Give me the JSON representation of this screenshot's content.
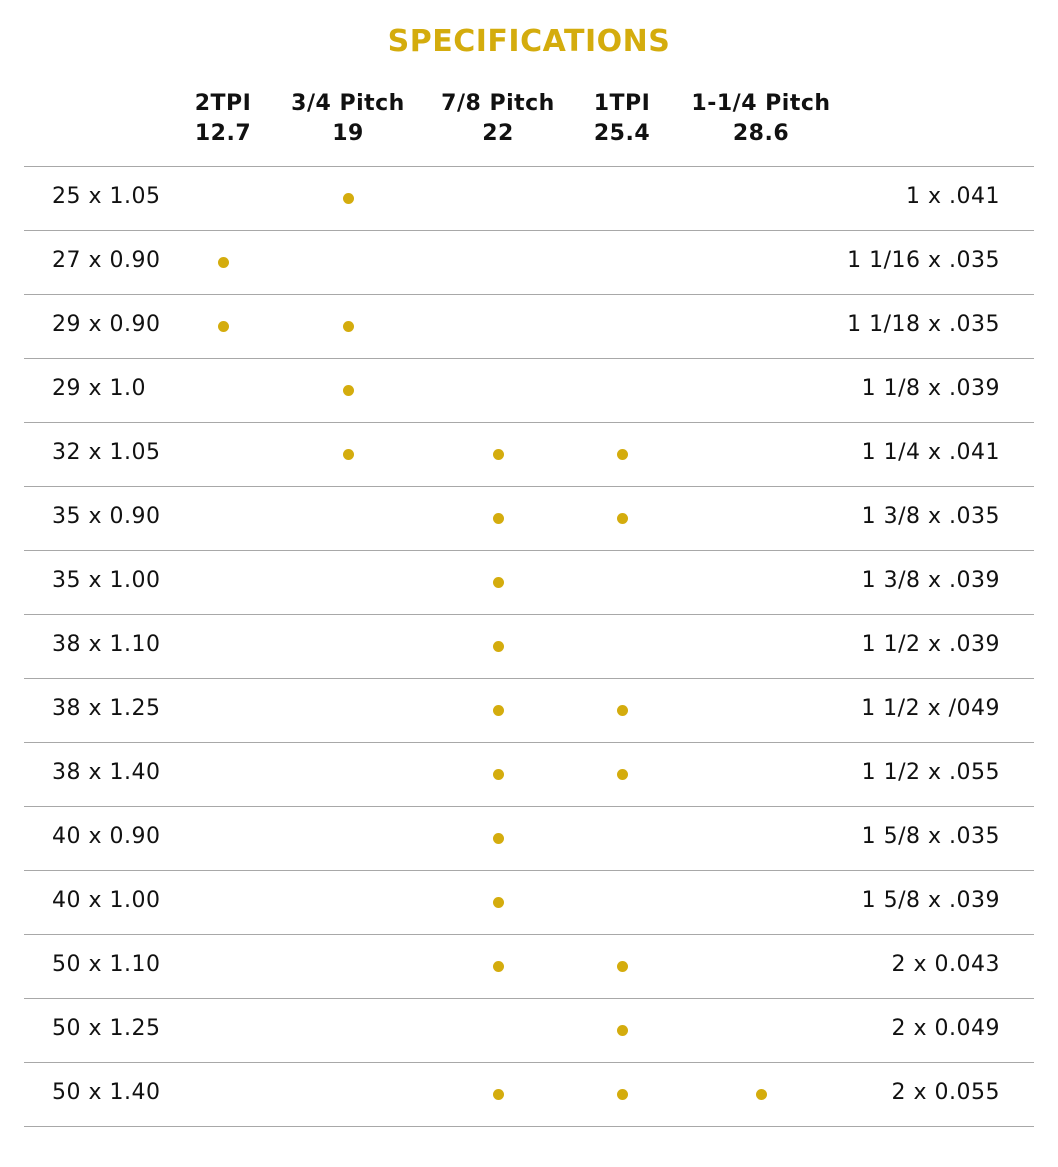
{
  "header": {
    "title": "SPECIFICATIONS"
  },
  "table": {
    "columns": [
      {
        "line1": "2TPI",
        "line2": "12.7"
      },
      {
        "line1": "3/4 Pitch",
        "line2": "19"
      },
      {
        "line1": "7/8 Pitch",
        "line2": "22"
      },
      {
        "line1": "1TPI",
        "line2": "25.4"
      },
      {
        "line1": "1-1/4 Pitch",
        "line2": "28.6"
      }
    ],
    "rows": [
      {
        "metric": "25 x 1.05",
        "available": [
          false,
          true,
          false,
          false,
          false
        ],
        "imperial": "1 x .041"
      },
      {
        "metric": "27 x 0.90",
        "available": [
          true,
          false,
          false,
          false,
          false
        ],
        "imperial": "1 1/16 x .035"
      },
      {
        "metric": "29 x 0.90",
        "available": [
          true,
          true,
          false,
          false,
          false
        ],
        "imperial": "1 1/18 x .035"
      },
      {
        "metric": "29 x 1.0",
        "available": [
          false,
          true,
          false,
          false,
          false
        ],
        "imperial": "1 1/8 x .039"
      },
      {
        "metric": "32 x 1.05",
        "available": [
          false,
          true,
          true,
          true,
          false
        ],
        "imperial": "1 1/4 x .041"
      },
      {
        "metric": "35 x 0.90",
        "available": [
          false,
          false,
          true,
          true,
          false
        ],
        "imperial": "1 3/8 x .035"
      },
      {
        "metric": "35 x 1.00",
        "available": [
          false,
          false,
          true,
          false,
          false
        ],
        "imperial": "1 3/8 x .039"
      },
      {
        "metric": "38 x 1.10",
        "available": [
          false,
          false,
          true,
          false,
          false
        ],
        "imperial": "1 1/2 x .039"
      },
      {
        "metric": "38 x 1.25",
        "available": [
          false,
          false,
          true,
          true,
          false
        ],
        "imperial": "1 1/2 x /049"
      },
      {
        "metric": "38 x 1.40",
        "available": [
          false,
          false,
          true,
          true,
          false
        ],
        "imperial": "1 1/2 x .055"
      },
      {
        "metric": "40 x 0.90",
        "available": [
          false,
          false,
          true,
          false,
          false
        ],
        "imperial": "1 5/8 x .035"
      },
      {
        "metric": "40 x 1.00",
        "available": [
          false,
          false,
          true,
          false,
          false
        ],
        "imperial": "1 5/8 x .039"
      },
      {
        "metric": "50 x 1.10",
        "available": [
          false,
          false,
          true,
          true,
          false
        ],
        "imperial": "2 x 0.043"
      },
      {
        "metric": "50 x 1.25",
        "available": [
          false,
          false,
          false,
          true,
          false
        ],
        "imperial": "2 x 0.049"
      },
      {
        "metric": "50 x 1.40",
        "available": [
          false,
          false,
          true,
          true,
          true
        ],
        "imperial": "2 x 0.055"
      }
    ]
  }
}
